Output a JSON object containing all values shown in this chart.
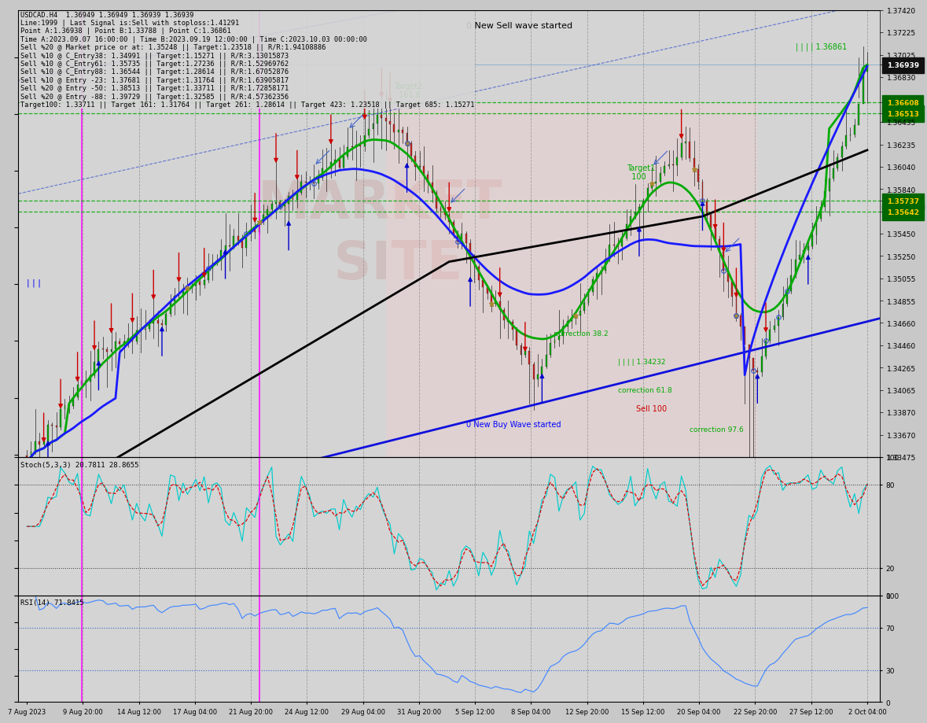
{
  "title": "USDCAD.H4  1.36949 1.36949 1.36939 1.36939",
  "subtitle_lines": [
    "Line:1999 | Last Signal is:Sell with stoploss:1.41291",
    "Point A:1.36938 | Point B:1.33788 | Point C:1.36861",
    "Time A:2023.09.07 16:00:00 | Time B:2023.09.19 12:00:00 | Time C:2023.10.03 00:00:00",
    "Sell %20 @ Market price or at: 1.35248 || Target:1.23518 || R/R:1.94108886",
    "Sell %10 @ C_Entry38: 1.34991 || Target:1.15271 || R/R:3.13015873",
    "Sell %10 @ C_Entry61: 1.35735 || Target:1.27236 || R/R:1.52969762",
    "Sell %10 @ C_Entry88: 1.36544 || Target:1.28614 || R/R:1.67052876",
    "Sell %10 @ Entry -23: 1.37681 || Target:1.31764 || R/R:1.63905817",
    "Sell %20 @ Entry -50: 1.38513 || Target:1.33711 || R/R:1.72858171",
    "Sell %20 @ Entry -88: 1.39729 || Target:1.32585 || R/R:4.57362356",
    "Target100: 1.33711 || Target 161: 1.31764 || Target 261: 1.28614 || Target 423: 1.23518 || Target 685: 1.15271"
  ],
  "annotation_top_right": "0 New Sell wave started",
  "annotation_bottom": "0 New Buy Wave started",
  "annotation_sell100": "Sell 100",
  "y_min": 1.33475,
  "y_max": 1.3742,
  "price_labels": [
    1.3742,
    1.37225,
    1.37025,
    1.36939,
    1.3683,
    1.36608,
    1.36513,
    1.36435,
    1.36235,
    1.3604,
    1.3584,
    1.35737,
    1.35642,
    1.3545,
    1.3525,
    1.35055,
    1.34855,
    1.3466,
    1.3446,
    1.34265,
    1.34065,
    1.3387,
    1.3367,
    1.33475
  ],
  "highlighted_prices": [
    "1.36608",
    "1.36513",
    "1.35737",
    "1.35642"
  ],
  "current_price": "1.36939",
  "x_labels": [
    "7 Aug 2023",
    "9 Aug 20:00",
    "14 Aug 12:00",
    "17 Aug 04:00",
    "21 Aug 20:00",
    "24 Aug 12:00",
    "29 Aug 04:00",
    "31 Aug 20:00",
    "5 Sep 12:00",
    "8 Sep 04:00",
    "12 Sep 20:00",
    "15 Sep 12:00",
    "20 Sep 04:00",
    "22 Sep 20:00",
    "27 Sep 12:00",
    "2 Oct 04:00"
  ],
  "bg_color": "#c8c8c8",
  "panel_bg": "#d4d4d4",
  "grid_color": "#b8b8b8",
  "candle_up": "#00aa00",
  "candle_down": "#cc2222",
  "text_color": "#000000",
  "stoch_color": "#00cccc",
  "stoch_signal_color": "#dd0000",
  "rsi_color": "#4488ff",
  "ma_blue_color": "#1a1aff",
  "ma_green_color": "#00aa00",
  "ma_black_color": "#000000",
  "fib_line_color": "#00aa00",
  "trendline_color": "#2222cc",
  "magenta_vline_color": "#ff00ff",
  "pink_rect_color": "#ffaaaa",
  "label_color_green": "#00aa00",
  "label_color_red": "#cc0000",
  "label_color_blue": "#0000ff"
}
